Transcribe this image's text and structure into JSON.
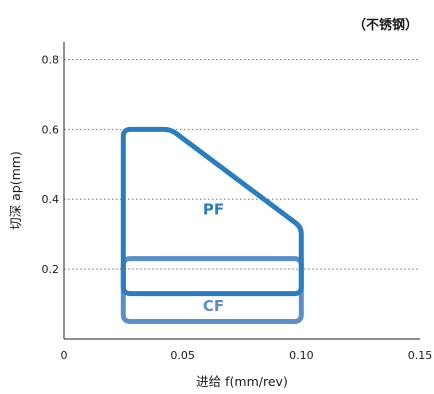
{
  "chart_data": {
    "type": "area",
    "note": "（不锈钢）",
    "xlabel": "进给 f(mm/rev)",
    "ylabel": "切深 ap(mm)",
    "xlim": [
      0,
      0.15
    ],
    "ylim": [
      0,
      0.85
    ],
    "x_ticks": [
      "0",
      "0.05",
      "0.10",
      "0.15"
    ],
    "x_tick_values": [
      0,
      0.05,
      0.1,
      0.15
    ],
    "y_ticks": [
      "0.2",
      "0.4",
      "0.6",
      "0.8"
    ],
    "y_tick_values": [
      0.2,
      0.4,
      0.6,
      0.8
    ],
    "grid": "horizontal dotted",
    "regions": [
      {
        "name": "CF",
        "color": "#5B8FC9",
        "points": [
          [
            0.025,
            0.05
          ],
          [
            0.1,
            0.05
          ],
          [
            0.1,
            0.23
          ],
          [
            0.025,
            0.23
          ]
        ],
        "label_at": [
          0.063,
          0.095
        ]
      },
      {
        "name": "PF",
        "color": "#2B7DC2",
        "points": [
          [
            0.025,
            0.13
          ],
          [
            0.1,
            0.13
          ],
          [
            0.1,
            0.32
          ],
          [
            0.045,
            0.6
          ],
          [
            0.025,
            0.6
          ]
        ],
        "label_at": [
          0.063,
          0.37
        ]
      }
    ]
  }
}
